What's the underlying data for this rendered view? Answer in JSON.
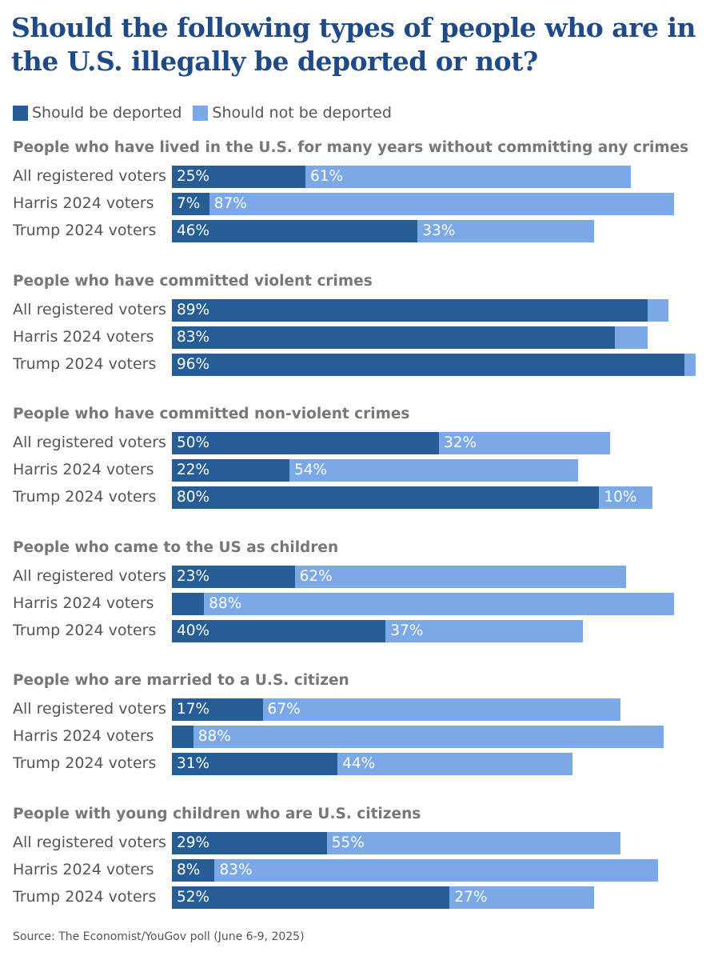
{
  "title": "Should the following types of people who are in the U.S. illegally be deported or not?",
  "source": "Source: The Economist/YouGov poll (June 6-9, 2025)",
  "colors": {
    "deported": "#255d94",
    "not_deported": "#7ba8e6"
  },
  "chart_data": {
    "type": "bar",
    "orientation": "horizontal-stacked",
    "unit": "%",
    "legend": [
      {
        "name": "Should be deported",
        "color": "#255d94"
      },
      {
        "name": "Should not be deported",
        "color": "#7ba8e6"
      }
    ],
    "legend_placement": "top-left",
    "groups": [
      {
        "title": "People who have lived in the U.S. for many years without committing any crimes",
        "rows": [
          {
            "label": "All registered voters",
            "deported": 25,
            "not_deported": 61
          },
          {
            "label": "Harris 2024 voters",
            "deported": 7,
            "not_deported": 87
          },
          {
            "label": "Trump 2024 voters",
            "deported": 46,
            "not_deported": 33
          }
        ]
      },
      {
        "title": "People who have committed violent crimes",
        "rows": [
          {
            "label": "All registered voters",
            "deported": 89,
            "not_deported": 4
          },
          {
            "label": "Harris 2024 voters",
            "deported": 83,
            "not_deported": 6
          },
          {
            "label": "Trump 2024 voters",
            "deported": 96,
            "not_deported": 2
          }
        ]
      },
      {
        "title": "People who have committed non-violent crimes",
        "rows": [
          {
            "label": "All registered voters",
            "deported": 50,
            "not_deported": 32
          },
          {
            "label": "Harris 2024 voters",
            "deported": 22,
            "not_deported": 54
          },
          {
            "label": "Trump 2024 voters",
            "deported": 80,
            "not_deported": 10
          }
        ]
      },
      {
        "title": "People who came to the US as children",
        "rows": [
          {
            "label": "All registered voters",
            "deported": 23,
            "not_deported": 62
          },
          {
            "label": "Harris 2024 voters",
            "deported": 6,
            "not_deported": 88
          },
          {
            "label": "Trump 2024 voters",
            "deported": 40,
            "not_deported": 37
          }
        ]
      },
      {
        "title": "People who are married to a U.S. citizen",
        "rows": [
          {
            "label": "All registered voters",
            "deported": 17,
            "not_deported": 67
          },
          {
            "label": "Harris 2024 voters",
            "deported": 4,
            "not_deported": 88
          },
          {
            "label": "Trump 2024 voters",
            "deported": 31,
            "not_deported": 44
          }
        ]
      },
      {
        "title": "People with young children who are U.S. citizens",
        "rows": [
          {
            "label": "All registered voters",
            "deported": 29,
            "not_deported": 55
          },
          {
            "label": "Harris 2024 voters",
            "deported": 8,
            "not_deported": 83
          },
          {
            "label": "Trump 2024 voters",
            "deported": 52,
            "not_deported": 27
          }
        ]
      }
    ]
  }
}
